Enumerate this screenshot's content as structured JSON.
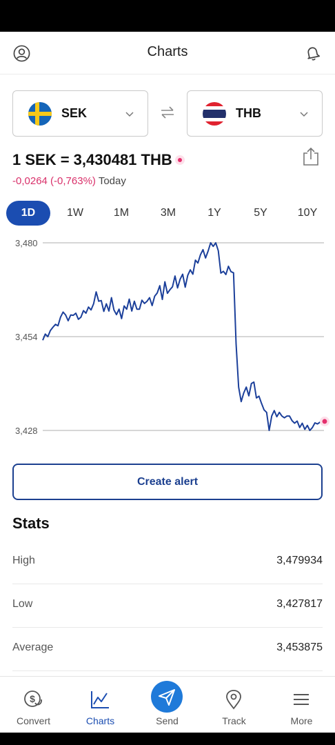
{
  "header": {
    "title": "Charts"
  },
  "pair": {
    "from": {
      "code": "SEK"
    },
    "to": {
      "code": "THB"
    }
  },
  "quote": {
    "rate_text": "1 SEK = 3,430481 THB",
    "change_text": "-0,0264 (-0,763%)",
    "period_text": "Today"
  },
  "periods": [
    "1D",
    "1W",
    "1M",
    "3M",
    "1Y",
    "5Y",
    "10Y"
  ],
  "active_period": "1D",
  "chart_data": {
    "type": "line",
    "yticks": [
      "3,480",
      "3,454",
      "3,428"
    ],
    "ylim": [
      3.428,
      3.48
    ],
    "series": [
      {
        "values": [
          3.453,
          3.4547,
          3.454,
          3.4557,
          3.4566,
          3.4574,
          3.457,
          3.4594,
          3.4608,
          3.46,
          3.4584,
          3.46,
          3.4599,
          3.4605,
          3.4588,
          3.4594,
          3.4612,
          3.4605,
          3.4622,
          3.4614,
          3.4631,
          3.4664,
          3.4638,
          3.464,
          3.461,
          3.4631,
          3.4611,
          3.4648,
          3.4614,
          3.4601,
          3.4616,
          3.459,
          3.4625,
          3.4616,
          3.4644,
          3.4611,
          3.4638,
          3.4616,
          3.4616,
          3.4641,
          3.4632,
          3.4638,
          3.4648,
          3.4626,
          3.4652,
          3.4661,
          3.4681,
          3.4643,
          3.4692,
          3.466,
          3.467,
          3.4678,
          3.4708,
          3.4675,
          3.4699,
          3.4713,
          3.4677,
          3.471,
          3.4725,
          3.4713,
          3.4752,
          3.4744,
          3.4767,
          3.4781,
          3.4758,
          3.4777,
          3.48,
          3.479,
          3.48,
          3.4778,
          3.4716,
          3.4721,
          3.4712,
          3.4735,
          3.472,
          3.4717,
          3.452,
          3.44,
          3.436,
          3.4384,
          3.44,
          3.4376,
          3.441,
          3.4414,
          3.437,
          3.4375,
          3.4355,
          3.4337,
          3.433,
          3.428,
          3.432,
          3.4335,
          3.4318,
          3.433,
          3.432,
          3.4315,
          3.432,
          3.432,
          3.4307,
          3.43,
          3.4306,
          3.4288,
          3.43,
          3.4283,
          3.4294,
          3.428,
          3.4288,
          3.4301,
          3.4298,
          3.4303,
          3.4305
        ]
      }
    ],
    "grid": true,
    "line_color": "#1b3f9a",
    "last_point_color": "#e5306d"
  },
  "actions": {
    "create_alert": "Create alert"
  },
  "stats": {
    "title": "Stats",
    "rows": [
      {
        "label": "High",
        "value": "3,479934"
      },
      {
        "label": "Low",
        "value": "3,427817"
      },
      {
        "label": "Average",
        "value": "3,453875"
      }
    ]
  },
  "nav": {
    "items": [
      {
        "label": "Convert",
        "icon": "currency-coin-icon"
      },
      {
        "label": "Charts",
        "icon": "chart-line-icon"
      },
      {
        "label": "Send",
        "icon": "paper-plane-icon"
      },
      {
        "label": "Track",
        "icon": "location-pin-icon"
      },
      {
        "label": "More",
        "icon": "menu-icon"
      }
    ],
    "active": "Charts"
  },
  "colors": {
    "primary": "#1b4db1",
    "negative": "#d9306a",
    "send": "#1f7ad9"
  }
}
